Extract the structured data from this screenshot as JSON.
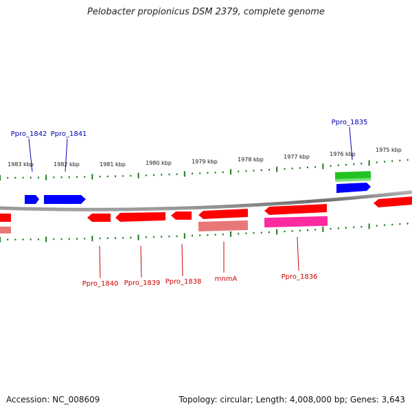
{
  "title": "Pelobacter propionicus DSM 2379, complete genome",
  "footer": {
    "accession": "Accession: NC_008609",
    "summary": "Topology: circular; Length: 4,008,000 bp; Genes: 3,643"
  },
  "colors": {
    "backbone": "#808080",
    "ticks": "#1a7a1a",
    "forward_gene": "#0000ff",
    "reverse_gene": "#ff0000",
    "rna_gene": "#22c322",
    "pseudo_gene": "#ff3399",
    "faded_gene": "#e87878",
    "label_blue": "#0000aa",
    "label_red": "#cc0000"
  },
  "ruler": {
    "unit": "kbp",
    "labels": [
      "1983 kbp",
      "1982 kbp",
      "1981 kbp",
      "1980 kbp",
      "1979 kbp",
      "1978 kbp",
      "1977 kbp",
      "1976 kbp",
      "1975 kbp"
    ]
  },
  "genes_top": [
    {
      "name": "Ppro_1842",
      "color": "blue"
    },
    {
      "name": "Ppro_1841",
      "color": "blue"
    },
    {
      "name": "Ppro_1835",
      "color": "blue"
    }
  ],
  "genes_bottom": [
    {
      "name": "Ppro_1840",
      "color": "red"
    },
    {
      "name": "Ppro_1839",
      "color": "red"
    },
    {
      "name": "Ppro_1838",
      "color": "red"
    },
    {
      "name": "mnmA",
      "color": "red"
    },
    {
      "name": "Ppro_1836",
      "color": "red"
    }
  ]
}
